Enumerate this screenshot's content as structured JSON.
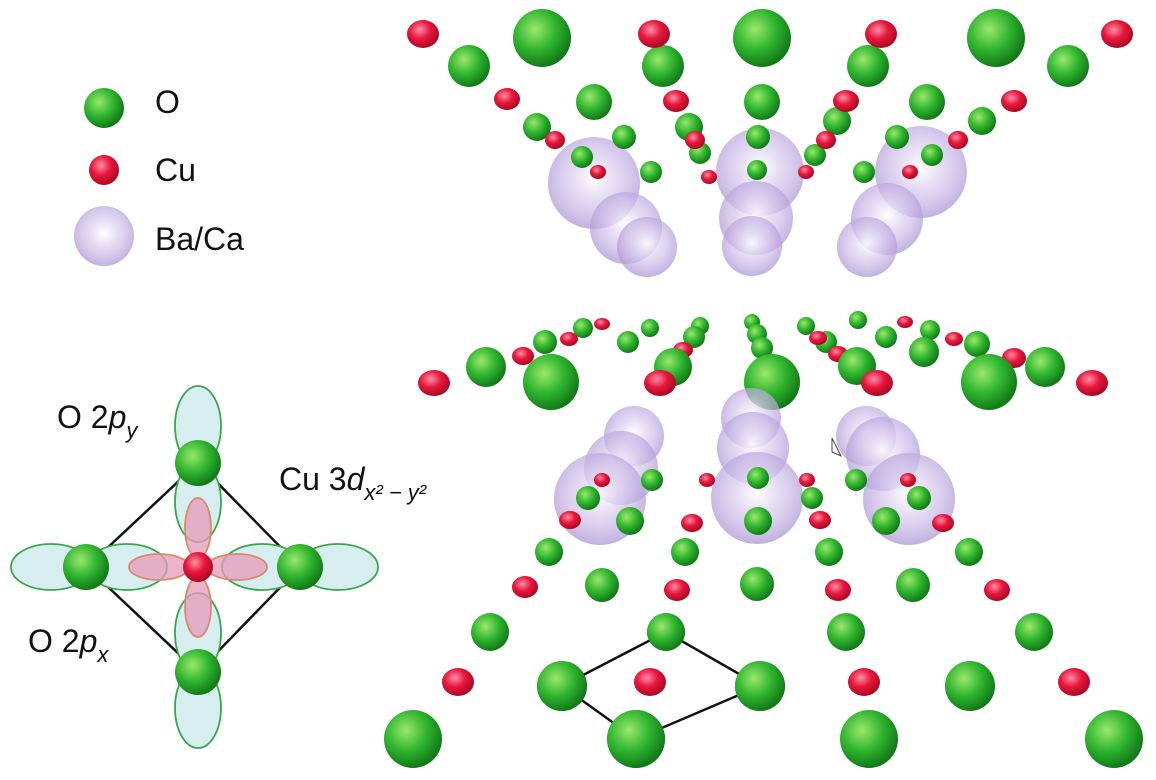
{
  "legend": {
    "items": [
      {
        "label": "O",
        "color": "#2fb52f",
        "icon": "green-sphere"
      },
      {
        "label": "Cu",
        "color": "#e8173c",
        "icon": "red-sphere"
      },
      {
        "label": "Ba/Ca",
        "color": "#b8a6dc",
        "icon": "violet-sphere"
      }
    ]
  },
  "orbitals": {
    "o2py": {
      "main": "O 2",
      "italic": "p",
      "sub": "y"
    },
    "o2px": {
      "main": "O 2",
      "italic": "p",
      "sub": "x"
    },
    "cu3d": {
      "main": "Cu 3",
      "italic": "d",
      "sub": "x² − y²"
    }
  },
  "colors": {
    "oxygen": "#2fb52f",
    "copper": "#e8173c",
    "barium_calcium": "#b8a6dc",
    "p_orbital_fill": "#d6eef0",
    "p_orbital_stroke": "#3aa64a",
    "d_orbital_fill": "#e79ab8",
    "d_orbital_stroke": "#d98a6a"
  }
}
